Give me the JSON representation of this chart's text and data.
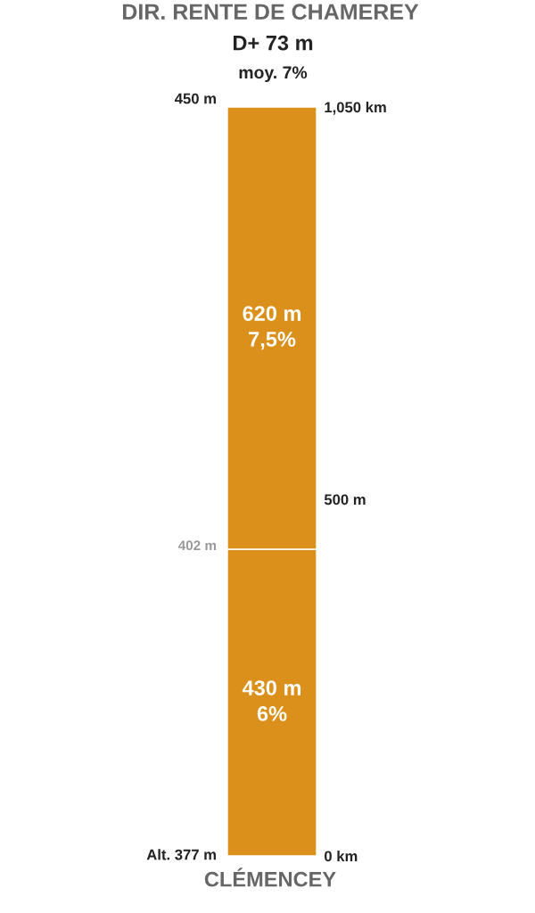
{
  "chart_data": {
    "type": "bar",
    "title": "DIR. RENTE DE CHAMEREY",
    "subtitle": "D+ 73 m",
    "annotations": [
      "moy. 7%",
      "CLÉMENCEY",
      "Alt. 377 m",
      "402 m",
      "450 m"
    ],
    "categories": [
      null
    ],
    "stacked": true,
    "series": [
      {
        "color": "#db901b",
        "values": [
          430
        ],
        "value_labels": [
          "430 m\n6%"
        ]
      },
      {
        "color": "#db901b",
        "values": [
          620
        ],
        "value_labels": [
          "620 m\n7,5%"
        ]
      }
    ],
    "ylim": [
      0,
      1050
    ],
    "yticks": [
      {
        "value": 0,
        "label": "0 km"
      },
      {
        "value": 500,
        "label": "500 m"
      },
      {
        "value": 1050,
        "label": "1,050 km"
      }
    ]
  }
}
